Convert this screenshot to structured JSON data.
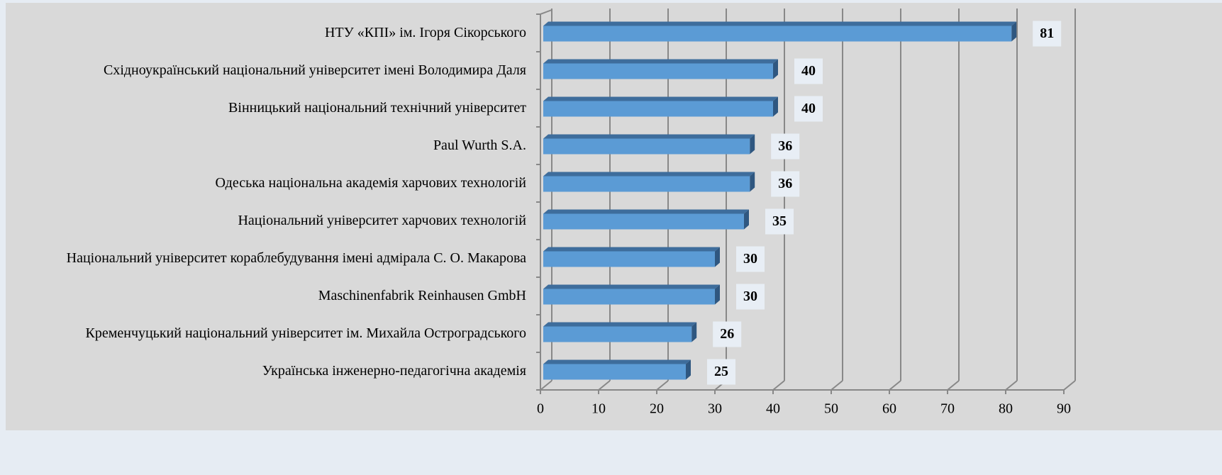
{
  "chart_data": {
    "type": "bar",
    "orientation": "horizontal",
    "categories": [
      "НТУ «КПІ» ім. Ігоря Сікорського",
      "Східноукраїнський національний університет імені Володимира Даля",
      "Вінницький національний технічний університет",
      "Paul Wurth S.A.",
      "Одеська національна академія харчових технологій",
      "Національний університет харчових технологій",
      "Національний університет кораблебудування імені адмірала С. О. Макарова",
      "Maschinenfabrik Reinhausen GmbH",
      "Кременчуцький національний університет ім. Михайла Остроградського",
      "Українська інженерно-педагогічна академія"
    ],
    "values": [
      81,
      40,
      40,
      36,
      36,
      35,
      30,
      30,
      26,
      25
    ],
    "color": "#5b9bd5",
    "xlim": [
      0,
      90
    ],
    "xticks": [
      0,
      10,
      20,
      30,
      40,
      50,
      60,
      70,
      80,
      90
    ],
    "grid": true
  }
}
